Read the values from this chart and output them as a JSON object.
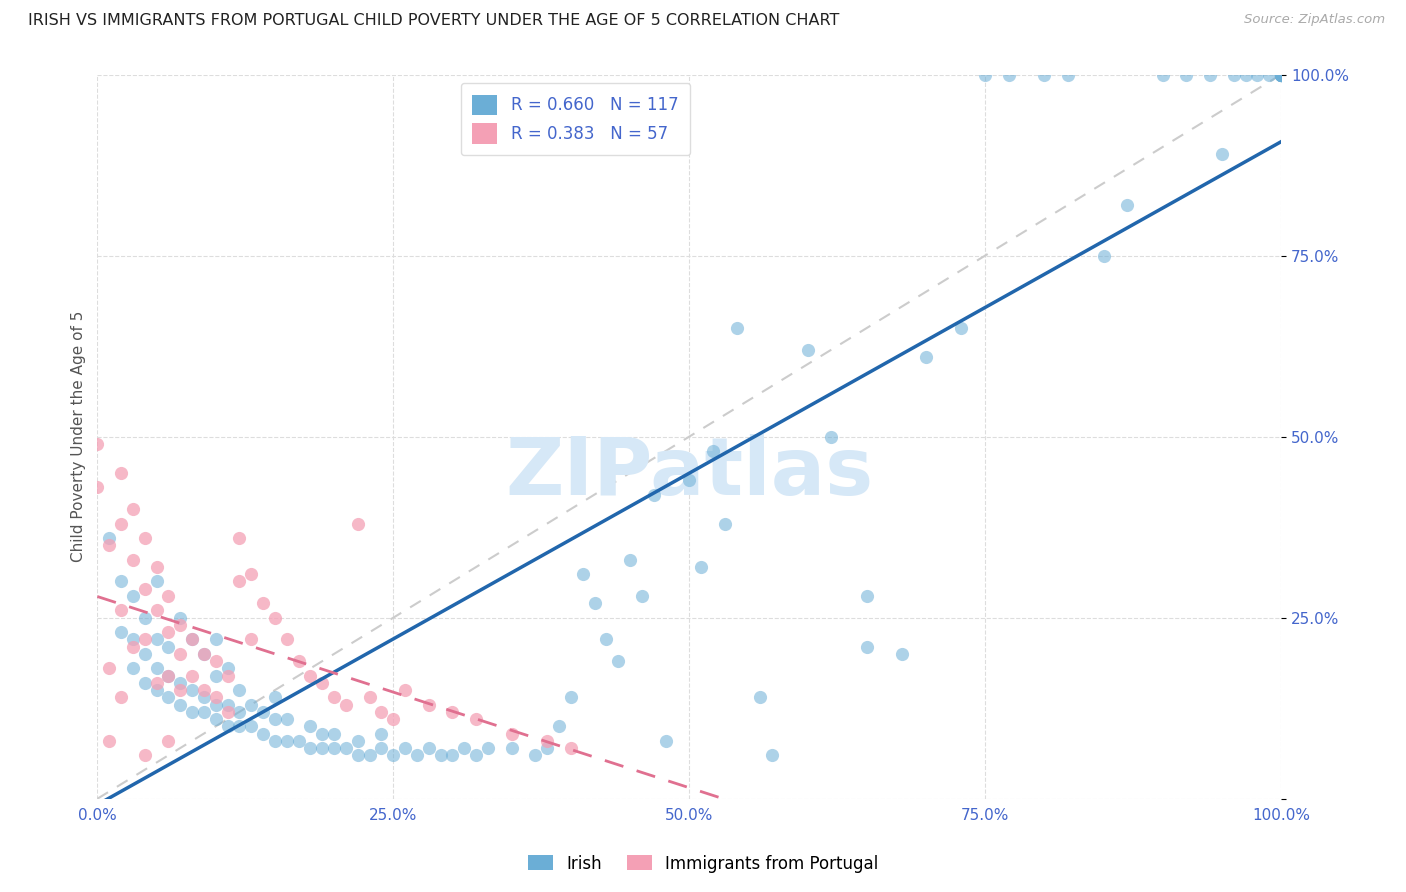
{
  "title": "IRISH VS IMMIGRANTS FROM PORTUGAL CHILD POVERTY UNDER THE AGE OF 5 CORRELATION CHART",
  "source": "Source: ZipAtlas.com",
  "ylabel": "Child Poverty Under the Age of 5",
  "R_irish": 0.66,
  "N_irish": 117,
  "R_portugal": 0.383,
  "N_portugal": 57,
  "irish_color": "#6baed6",
  "portugal_color": "#f4a0b5",
  "irish_line_color": "#2166ac",
  "portugal_line_color": "#e07090",
  "diagonal_color": "#cccccc",
  "background_color": "#ffffff",
  "grid_color": "#dddddd",
  "watermark_color": "#d6e8f7",
  "tick_color": "#4466cc",
  "irish_scatter_x": [
    0.01,
    0.02,
    0.02,
    0.03,
    0.03,
    0.03,
    0.04,
    0.04,
    0.04,
    0.05,
    0.05,
    0.05,
    0.05,
    0.06,
    0.06,
    0.06,
    0.07,
    0.07,
    0.07,
    0.08,
    0.08,
    0.08,
    0.09,
    0.09,
    0.09,
    0.1,
    0.1,
    0.1,
    0.1,
    0.11,
    0.11,
    0.11,
    0.12,
    0.12,
    0.12,
    0.13,
    0.13,
    0.14,
    0.14,
    0.15,
    0.15,
    0.15,
    0.16,
    0.16,
    0.17,
    0.18,
    0.18,
    0.19,
    0.19,
    0.2,
    0.2,
    0.21,
    0.22,
    0.22,
    0.23,
    0.24,
    0.24,
    0.25,
    0.26,
    0.27,
    0.28,
    0.29,
    0.3,
    0.31,
    0.32,
    0.33,
    0.35,
    0.37,
    0.38,
    0.39,
    0.4,
    0.41,
    0.42,
    0.43,
    0.44,
    0.45,
    0.46,
    0.47,
    0.48,
    0.5,
    0.51,
    0.52,
    0.53,
    0.54,
    0.56,
    0.57,
    0.6,
    0.62,
    0.65,
    0.65,
    0.68,
    0.7,
    0.73,
    0.75,
    0.77,
    0.8,
    0.82,
    0.85,
    0.87,
    0.9,
    0.92,
    0.94,
    0.95,
    0.96,
    0.97,
    0.98,
    0.99,
    1.0,
    1.0,
    1.0,
    1.0,
    1.0,
    1.0,
    1.0,
    1.0,
    1.0,
    1.0
  ],
  "irish_scatter_y": [
    0.36,
    0.3,
    0.23,
    0.18,
    0.22,
    0.28,
    0.16,
    0.2,
    0.25,
    0.15,
    0.18,
    0.22,
    0.3,
    0.14,
    0.17,
    0.21,
    0.13,
    0.16,
    0.25,
    0.12,
    0.15,
    0.22,
    0.12,
    0.14,
    0.2,
    0.11,
    0.13,
    0.17,
    0.22,
    0.1,
    0.13,
    0.18,
    0.1,
    0.12,
    0.15,
    0.1,
    0.13,
    0.09,
    0.12,
    0.08,
    0.11,
    0.14,
    0.08,
    0.11,
    0.08,
    0.07,
    0.1,
    0.07,
    0.09,
    0.07,
    0.09,
    0.07,
    0.06,
    0.08,
    0.06,
    0.07,
    0.09,
    0.06,
    0.07,
    0.06,
    0.07,
    0.06,
    0.06,
    0.07,
    0.06,
    0.07,
    0.07,
    0.06,
    0.07,
    0.1,
    0.14,
    0.31,
    0.27,
    0.22,
    0.19,
    0.33,
    0.28,
    0.42,
    0.08,
    0.44,
    0.32,
    0.48,
    0.38,
    0.65,
    0.14,
    0.06,
    0.62,
    0.5,
    0.21,
    0.28,
    0.2,
    0.61,
    0.65,
    1.0,
    1.0,
    1.0,
    1.0,
    0.75,
    0.82,
    1.0,
    1.0,
    1.0,
    0.89,
    1.0,
    1.0,
    1.0,
    1.0,
    1.0,
    1.0,
    1.0,
    1.0,
    1.0,
    1.0,
    1.0,
    1.0,
    1.0,
    1.0
  ],
  "portugal_scatter_x": [
    0.0,
    0.0,
    0.01,
    0.01,
    0.01,
    0.02,
    0.02,
    0.02,
    0.02,
    0.03,
    0.03,
    0.03,
    0.04,
    0.04,
    0.04,
    0.04,
    0.05,
    0.05,
    0.05,
    0.06,
    0.06,
    0.06,
    0.06,
    0.07,
    0.07,
    0.07,
    0.08,
    0.08,
    0.09,
    0.09,
    0.1,
    0.1,
    0.11,
    0.11,
    0.12,
    0.12,
    0.13,
    0.13,
    0.14,
    0.15,
    0.16,
    0.17,
    0.18,
    0.19,
    0.2,
    0.21,
    0.22,
    0.23,
    0.24,
    0.25,
    0.26,
    0.28,
    0.3,
    0.32,
    0.35,
    0.38,
    0.4
  ],
  "portugal_scatter_y": [
    0.49,
    0.43,
    0.35,
    0.18,
    0.08,
    0.45,
    0.38,
    0.26,
    0.14,
    0.4,
    0.33,
    0.21,
    0.36,
    0.29,
    0.22,
    0.06,
    0.32,
    0.26,
    0.16,
    0.28,
    0.23,
    0.17,
    0.08,
    0.24,
    0.2,
    0.15,
    0.22,
    0.17,
    0.2,
    0.15,
    0.19,
    0.14,
    0.17,
    0.12,
    0.36,
    0.3,
    0.31,
    0.22,
    0.27,
    0.25,
    0.22,
    0.19,
    0.17,
    0.16,
    0.14,
    0.13,
    0.38,
    0.14,
    0.12,
    0.11,
    0.15,
    0.13,
    0.12,
    0.11,
    0.09,
    0.08,
    0.07
  ]
}
